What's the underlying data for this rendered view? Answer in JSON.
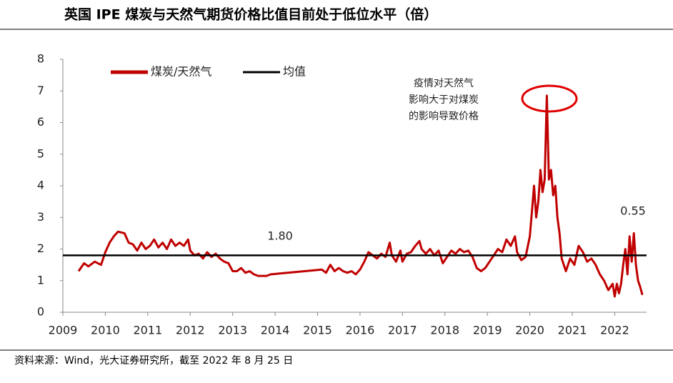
{
  "title": "英国 IPE 煤炭与天然气期货价格比值目前处于低位水平（倍）",
  "source": "资料来源：Wind，光大证券研究所，截至 2022 年 8 月 25 日",
  "chart_data": {
    "type": "line",
    "annotations": [
      "1.80",
      "0.55",
      [
        "疫情对天然气",
        "影响大于对煤炭",
        "的影响导致价格"
      ]
    ],
    "xlim": [
      2009,
      2022.75
    ],
    "ylim": [
      0,
      8
    ],
    "xticks": [
      2009,
      2010,
      2011,
      2012,
      2013,
      2014,
      2015,
      2016,
      2017,
      2018,
      2019,
      2020,
      2021,
      2022
    ],
    "yticks": [
      0,
      1,
      2,
      3,
      4,
      5,
      6,
      7,
      8
    ],
    "legend": "top-left",
    "series": [
      {
        "name": "煤炭/天然气",
        "color": "#c00000",
        "x": [
          2009.37,
          2009.5,
          2009.6,
          2009.75,
          2009.9,
          2010.0,
          2010.1,
          2010.2,
          2010.3,
          2010.45,
          2010.55,
          2010.65,
          2010.75,
          2010.85,
          2010.95,
          2011.05,
          2011.15,
          2011.25,
          2011.35,
          2011.45,
          2011.55,
          2011.65,
          2011.75,
          2011.85,
          2011.95,
          2012.0,
          2012.1,
          2012.2,
          2012.3,
          2012.4,
          2012.5,
          2012.6,
          2012.7,
          2012.8,
          2012.9,
          2013.0,
          2013.1,
          2013.2,
          2013.3,
          2013.4,
          2013.5,
          2013.6,
          2013.7,
          2013.8,
          2013.9,
          2015.1,
          2015.2,
          2015.3,
          2015.4,
          2015.5,
          2015.6,
          2015.7,
          2015.8,
          2015.9,
          2016.0,
          2016.1,
          2016.2,
          2016.3,
          2016.4,
          2016.5,
          2016.6,
          2016.7,
          2016.75,
          2016.85,
          2016.95,
          2017.0,
          2017.1,
          2017.2,
          2017.3,
          2017.4,
          2017.45,
          2017.55,
          2017.65,
          2017.75,
          2017.85,
          2017.95,
          2018.05,
          2018.15,
          2018.25,
          2018.35,
          2018.45,
          2018.55,
          2018.65,
          2018.75,
          2018.85,
          2018.95,
          2019.05,
          2019.15,
          2019.25,
          2019.35,
          2019.45,
          2019.55,
          2019.65,
          2019.7,
          2019.8,
          2019.9,
          2020.0,
          2020.05,
          2020.1,
          2020.15,
          2020.2,
          2020.25,
          2020.3,
          2020.35,
          2020.4,
          2020.45,
          2020.5,
          2020.55,
          2020.6,
          2020.65,
          2020.7,
          2020.75,
          2020.85,
          2020.95,
          2021.05,
          2021.15,
          2021.25,
          2021.35,
          2021.45,
          2021.55,
          2021.65,
          2021.75,
          2021.85,
          2021.95,
          2022.0,
          2022.05,
          2022.1,
          2022.15,
          2022.2,
          2022.25,
          2022.3,
          2022.35,
          2022.4,
          2022.45,
          2022.5,
          2022.55,
          2022.6,
          2022.65
        ],
        "values": [
          1.3,
          1.55,
          1.45,
          1.6,
          1.5,
          1.9,
          2.2,
          2.4,
          2.55,
          2.5,
          2.2,
          2.15,
          1.95,
          2.2,
          2.0,
          2.1,
          2.3,
          2.05,
          2.2,
          2.0,
          2.3,
          2.1,
          2.2,
          2.1,
          2.3,
          1.95,
          1.8,
          1.85,
          1.7,
          1.9,
          1.75,
          1.85,
          1.7,
          1.6,
          1.55,
          1.3,
          1.3,
          1.4,
          1.25,
          1.3,
          1.2,
          1.15,
          1.15,
          1.15,
          1.2,
          1.35,
          1.25,
          1.5,
          1.3,
          1.4,
          1.3,
          1.25,
          1.3,
          1.2,
          1.35,
          1.6,
          1.9,
          1.8,
          1.7,
          1.85,
          1.75,
          2.2,
          1.8,
          1.6,
          1.95,
          1.6,
          1.85,
          1.9,
          2.1,
          2.25,
          2.0,
          1.85,
          2.0,
          1.8,
          1.95,
          1.55,
          1.75,
          1.95,
          1.85,
          2.0,
          1.9,
          1.95,
          1.75,
          1.4,
          1.3,
          1.4,
          1.6,
          1.8,
          2.0,
          1.9,
          2.3,
          2.1,
          2.4,
          1.9,
          1.65,
          1.75,
          2.4,
          3.2,
          4.0,
          3.0,
          3.5,
          4.5,
          3.8,
          4.2,
          6.85,
          4.2,
          4.5,
          3.7,
          4.0,
          3.0,
          2.5,
          1.7,
          1.3,
          1.7,
          1.5,
          2.1,
          1.9,
          1.6,
          1.7,
          1.5,
          1.2,
          1.0,
          0.7,
          0.9,
          0.5,
          0.9,
          0.6,
          0.9,
          1.5,
          2.0,
          1.2,
          2.4,
          1.6,
          2.5,
          1.5,
          1.0,
          0.8,
          0.55
        ]
      },
      {
        "name": "均值",
        "color": "#000000",
        "x": [
          2009,
          2022.75
        ],
        "values": [
          1.8,
          1.8
        ]
      }
    ]
  }
}
